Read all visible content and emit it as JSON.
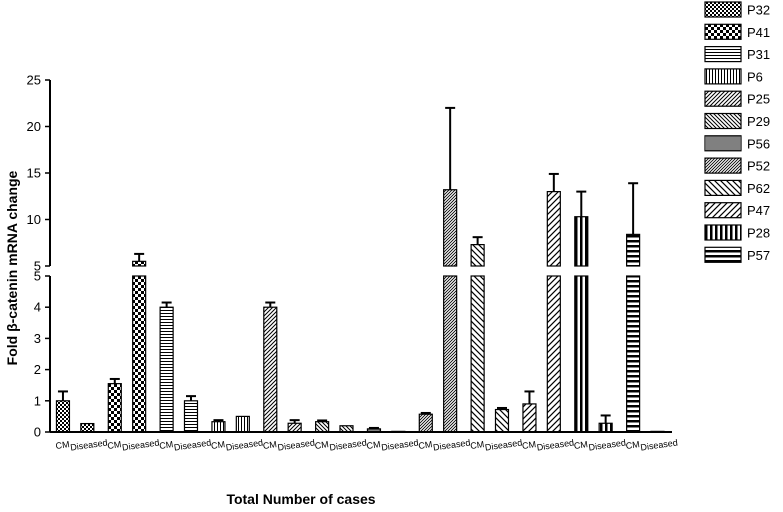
{
  "chart_data": {
    "type": "bar",
    "ylabel": "Fold β-catenin mRNA change",
    "xlabel": "Total Number of cases",
    "y_axis_break": true,
    "ylim_lower": [
      0,
      5
    ],
    "ylim_upper": [
      5,
      25
    ],
    "yticks_lower": [
      0,
      1,
      2,
      3,
      4,
      5
    ],
    "yticks_upper": [
      5,
      10,
      15,
      20,
      25
    ],
    "legend_position": "right",
    "groups": [
      {
        "name": "P32",
        "pattern": "checker-small",
        "cm": 1.0,
        "cm_err": 0.3,
        "diseased": 0.27,
        "diseased_err": 0.0
      },
      {
        "name": "P41",
        "pattern": "checker-large",
        "cm": 1.55,
        "cm_err": 0.15,
        "diseased": 5.5,
        "diseased_err": 0.8
      },
      {
        "name": "P31",
        "pattern": "hlines",
        "cm": 4.0,
        "cm_err": 0.15,
        "diseased": 1.0,
        "diseased_err": 0.15
      },
      {
        "name": "P6",
        "pattern": "vlines",
        "cm": 0.33,
        "cm_err": 0.05,
        "diseased": 0.5,
        "diseased_err": 0.0
      },
      {
        "name": "P25",
        "pattern": "diag-up",
        "cm": 4.0,
        "cm_err": 0.15,
        "diseased": 0.28,
        "diseased_err": 0.1
      },
      {
        "name": "P29",
        "pattern": "diag-down",
        "cm": 0.33,
        "cm_err": 0.04,
        "diseased": 0.2,
        "diseased_err": 0.0
      },
      {
        "name": "P56",
        "pattern": "vlines-dense",
        "cm": 0.1,
        "cm_err": 0.03,
        "diseased": 0.02,
        "diseased_err": 0.0
      },
      {
        "name": "P52",
        "pattern": "diag-up-dense",
        "cm": 0.57,
        "cm_err": 0.04,
        "diseased": 13.2,
        "diseased_err": 8.8
      },
      {
        "name": "P62",
        "pattern": "diag-down-wide",
        "cm": 7.3,
        "cm_err": 0.8,
        "diseased": 0.72,
        "diseased_err": 0.05
      },
      {
        "name": "P47",
        "pattern": "diag-up-wide",
        "cm": 0.9,
        "cm_err": 0.4,
        "diseased": 13.0,
        "diseased_err": 1.9
      },
      {
        "name": "P28",
        "pattern": "vlines-bold",
        "cm": 10.3,
        "cm_err": 2.7,
        "diseased": 0.28,
        "diseased_err": 0.25
      },
      {
        "name": "P57",
        "pattern": "hlines-bold",
        "cm": 8.4,
        "cm_err": 5.5,
        "diseased": 0.02,
        "diseased_err": 0.0
      }
    ],
    "category_labels": [
      "CM",
      "Diseased"
    ]
  }
}
